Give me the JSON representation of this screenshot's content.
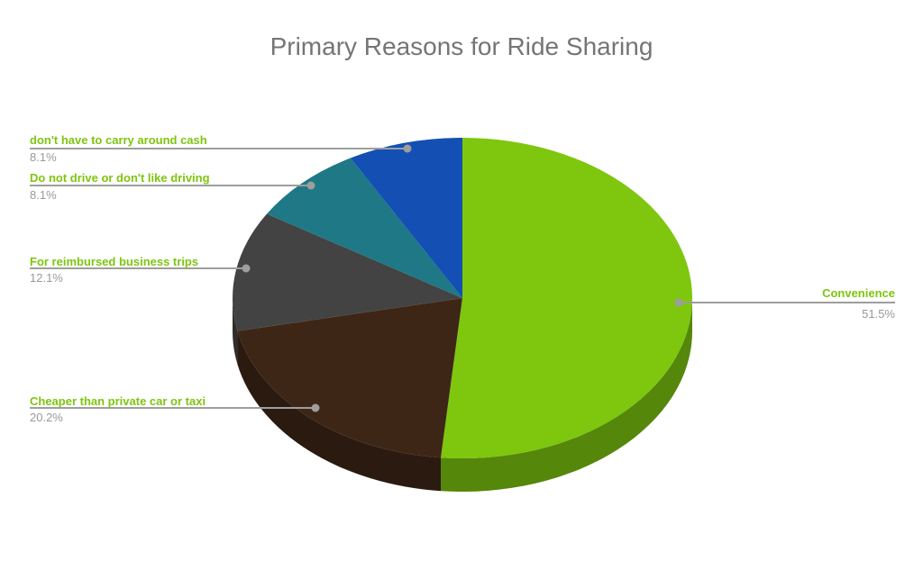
{
  "title": "Primary Reasons for Ride Sharing",
  "chart_data": {
    "type": "pie",
    "is_3d": true,
    "title": "Primary Reasons for Ride Sharing",
    "title_color": "#757575",
    "background": "#FFFFFF",
    "start_angle_deg": 0,
    "direction": "clockwise",
    "legend_position": "labeled",
    "label_color": "#7EC50F",
    "pct_color": "#999999",
    "leader_line_color": "#9E9E9E",
    "slices": [
      {
        "label": "Convenience",
        "value_pct": 51.5,
        "display_pct": "51.5%",
        "color": "#7EC70E",
        "side_color": "#55870A"
      },
      {
        "label": "Cheaper than private car or taxi",
        "value_pct": 20.2,
        "display_pct": "20.2%",
        "color": "#3E2617",
        "side_color": "#2B1A10"
      },
      {
        "label": "For reimbursed business trips",
        "value_pct": 12.1,
        "display_pct": "12.1%",
        "color": "#434343",
        "side_color": "#2E2E2E"
      },
      {
        "label": "Do not drive or don't like driving",
        "value_pct": 8.1,
        "display_pct": "8.1%",
        "color": "#1F7886",
        "side_color": "#15525C"
      },
      {
        "label": "don't have to carry around cash",
        "value_pct": 8.1,
        "display_pct": "8.1%",
        "color": "#1450B4",
        "side_color": "#0E387D"
      }
    ]
  }
}
